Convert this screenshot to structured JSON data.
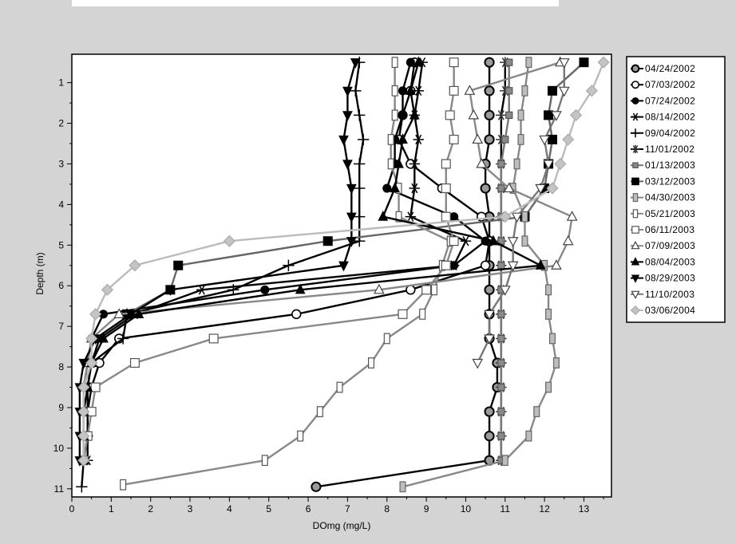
{
  "chart_data": {
    "type": "line",
    "orientation": "vertical-profile",
    "xlabel": "DOmg (mg/L)",
    "ylabel": "Depth (m)",
    "xlim": [
      0,
      13.7
    ],
    "ylim": [
      11.2,
      0.3
    ],
    "xticks": [
      0,
      1,
      2,
      3,
      4,
      5,
      6,
      7,
      8,
      9,
      10,
      11,
      12,
      13
    ],
    "yticks": [
      1,
      2,
      3,
      4,
      5,
      6,
      7,
      8,
      9,
      10,
      11
    ],
    "legend_position": "right",
    "series": [
      {
        "name": "04/24/2002",
        "color": "#000000",
        "marker": "circle-gray",
        "points": [
          [
            10.6,
            0.5
          ],
          [
            10.6,
            1.2
          ],
          [
            10.6,
            1.8
          ],
          [
            10.6,
            2.4
          ],
          [
            10.5,
            3.0
          ],
          [
            10.5,
            3.6
          ],
          [
            10.6,
            4.3
          ],
          [
            10.6,
            4.9
          ],
          [
            10.6,
            5.5
          ],
          [
            10.6,
            6.1
          ],
          [
            10.6,
            6.7
          ],
          [
            10.6,
            7.3
          ],
          [
            10.8,
            7.9
          ],
          [
            10.8,
            8.5
          ],
          [
            10.6,
            9.1
          ],
          [
            10.6,
            9.7
          ],
          [
            10.6,
            10.3
          ],
          [
            6.2,
            10.95
          ]
        ]
      },
      {
        "name": "07/03/2002",
        "color": "#000000",
        "marker": "circle-open",
        "points": [
          [
            8.7,
            0.5
          ],
          [
            8.6,
            1.2
          ],
          [
            8.4,
            1.8
          ],
          [
            8.3,
            2.4
          ],
          [
            8.6,
            3.0
          ],
          [
            9.4,
            3.6
          ],
          [
            10.4,
            4.3
          ],
          [
            10.6,
            4.9
          ],
          [
            10.5,
            5.5
          ],
          [
            8.6,
            6.1
          ],
          [
            5.7,
            6.7
          ],
          [
            1.2,
            7.3
          ],
          [
            0.7,
            7.9
          ],
          [
            0.5,
            8.5
          ],
          [
            0.4,
            9.1
          ],
          [
            0.4,
            9.7
          ],
          [
            0.3,
            10.3
          ]
        ]
      },
      {
        "name": "07/24/2002",
        "color": "#000000",
        "marker": "circle-filled",
        "points": [
          [
            8.6,
            0.5
          ],
          [
            8.4,
            1.2
          ],
          [
            8.4,
            1.8
          ],
          [
            8.2,
            2.4
          ],
          [
            8.2,
            3.0
          ],
          [
            8.0,
            3.6
          ],
          [
            9.7,
            4.3
          ],
          [
            10.5,
            4.9
          ],
          [
            9.7,
            5.5
          ],
          [
            4.9,
            6.1
          ],
          [
            0.8,
            6.7
          ],
          [
            0.5,
            7.3
          ],
          [
            0.4,
            7.9
          ],
          [
            0.3,
            8.5
          ],
          [
            0.3,
            9.1
          ],
          [
            0.3,
            9.7
          ],
          [
            0.3,
            10.3
          ]
        ]
      },
      {
        "name": "08/14/2002",
        "color": "#000000",
        "marker": "star",
        "points": [
          [
            8.9,
            0.5
          ],
          [
            8.8,
            1.2
          ],
          [
            8.7,
            1.8
          ],
          [
            8.8,
            2.4
          ],
          [
            8.7,
            3.0
          ],
          [
            8.7,
            3.6
          ],
          [
            8.6,
            4.3
          ],
          [
            10.0,
            4.9
          ],
          [
            9.7,
            5.5
          ],
          [
            3.3,
            6.1
          ],
          [
            1.6,
            6.7
          ],
          [
            0.7,
            7.3
          ],
          [
            0.5,
            7.9
          ],
          [
            0.4,
            8.5
          ],
          [
            0.4,
            9.1
          ],
          [
            0.4,
            9.7
          ],
          [
            0.4,
            10.3
          ]
        ]
      },
      {
        "name": "09/04/2002",
        "color": "#000000",
        "marker": "plus",
        "points": [
          [
            7.3,
            0.5
          ],
          [
            7.2,
            1.2
          ],
          [
            7.3,
            1.8
          ],
          [
            7.4,
            2.4
          ],
          [
            7.3,
            3.0
          ],
          [
            7.3,
            3.6
          ],
          [
            7.3,
            4.3
          ],
          [
            7.3,
            4.9
          ],
          [
            5.5,
            5.5
          ],
          [
            4.1,
            6.1
          ],
          [
            1.4,
            6.7
          ],
          [
            1.3,
            7.3
          ],
          [
            0.5,
            7.9
          ],
          [
            0.3,
            8.5
          ],
          [
            0.3,
            9.1
          ],
          [
            0.3,
            9.7
          ],
          [
            0.3,
            10.3
          ],
          [
            0.25,
            10.95
          ]
        ]
      },
      {
        "name": "11/01/2002",
        "color": "#000000",
        "marker": "asterisk",
        "points": [
          [
            11.0,
            0.5
          ],
          [
            11.0,
            1.2
          ],
          [
            10.9,
            1.8
          ],
          [
            10.9,
            2.4
          ],
          [
            10.9,
            3.0
          ],
          [
            10.9,
            3.6
          ],
          [
            10.9,
            4.3
          ],
          [
            10.9,
            4.9
          ],
          [
            10.9,
            5.5
          ],
          [
            10.9,
            6.1
          ],
          [
            10.9,
            6.7
          ],
          [
            10.9,
            7.3
          ],
          [
            10.9,
            7.9
          ],
          [
            10.9,
            8.5
          ],
          [
            10.9,
            9.1
          ],
          [
            10.9,
            9.7
          ],
          [
            10.9,
            10.3
          ]
        ]
      },
      {
        "name": "01/13/2003",
        "color": "#777777",
        "marker": "square-gray-small",
        "points": [
          [
            11.1,
            0.5
          ],
          [
            11.1,
            1.2
          ],
          [
            11.1,
            1.8
          ],
          [
            11.0,
            2.4
          ],
          [
            10.9,
            3.0
          ],
          [
            10.9,
            3.6
          ],
          [
            10.9,
            4.3
          ],
          [
            10.9,
            4.9
          ],
          [
            10.9,
            5.5
          ],
          [
            10.9,
            6.1
          ],
          [
            10.9,
            6.7
          ],
          [
            10.9,
            7.3
          ],
          [
            10.9,
            7.9
          ],
          [
            10.9,
            8.5
          ],
          [
            10.9,
            9.1
          ],
          [
            10.9,
            9.7
          ],
          [
            10.9,
            10.3
          ]
        ]
      },
      {
        "name": "03/12/2003",
        "color": "#666666",
        "marker": "square-black",
        "points": [
          [
            13.0,
            0.5
          ],
          [
            12.2,
            1.2
          ],
          [
            12.1,
            1.8
          ],
          [
            12.2,
            2.4
          ],
          [
            12.1,
            3.0
          ],
          [
            12.0,
            3.6
          ],
          [
            11.5,
            4.3
          ],
          [
            6.5,
            4.9
          ],
          [
            2.7,
            5.5
          ],
          [
            2.5,
            6.1
          ],
          [
            1.4,
            6.7
          ]
        ]
      },
      {
        "name": "04/30/2003",
        "color": "#888888",
        "marker": "rect-gray",
        "points": [
          [
            11.6,
            0.5
          ],
          [
            11.5,
            1.2
          ],
          [
            11.4,
            1.8
          ],
          [
            11.4,
            2.4
          ],
          [
            11.3,
            3.0
          ],
          [
            11.2,
            3.6
          ],
          [
            11.5,
            4.3
          ],
          [
            11.5,
            4.9
          ],
          [
            12.0,
            5.5
          ],
          [
            12.1,
            6.1
          ],
          [
            12.1,
            6.7
          ],
          [
            12.2,
            7.3
          ],
          [
            12.3,
            7.9
          ],
          [
            12.1,
            8.5
          ],
          [
            11.8,
            9.1
          ],
          [
            11.6,
            9.7
          ],
          [
            11.0,
            10.3
          ],
          [
            8.4,
            10.95
          ]
        ]
      },
      {
        "name": "05/21/2003",
        "color": "#888888",
        "marker": "rect-open",
        "points": [
          [
            8.2,
            0.5
          ],
          [
            8.2,
            1.2
          ],
          [
            8.2,
            1.8
          ],
          [
            8.1,
            2.4
          ],
          [
            8.1,
            3.0
          ],
          [
            8.3,
            3.6
          ],
          [
            8.3,
            4.3
          ],
          [
            9.6,
            4.9
          ],
          [
            9.4,
            5.5
          ],
          [
            9.2,
            6.1
          ],
          [
            8.9,
            6.7
          ],
          [
            8.0,
            7.3
          ],
          [
            7.6,
            7.9
          ],
          [
            6.8,
            8.5
          ],
          [
            6.3,
            9.1
          ],
          [
            5.8,
            9.7
          ],
          [
            4.9,
            10.3
          ],
          [
            1.3,
            10.9
          ]
        ]
      },
      {
        "name": "06/11/2003",
        "color": "#888888",
        "marker": "square-open",
        "points": [
          [
            9.7,
            0.5
          ],
          [
            9.7,
            1.2
          ],
          [
            9.6,
            1.8
          ],
          [
            9.7,
            2.4
          ],
          [
            9.5,
            3.0
          ],
          [
            9.5,
            3.6
          ],
          [
            9.5,
            4.3
          ],
          [
            9.7,
            4.9
          ],
          [
            9.5,
            5.5
          ],
          [
            9.0,
            6.1
          ],
          [
            8.4,
            6.7
          ],
          [
            3.6,
            7.3
          ],
          [
            1.6,
            7.9
          ],
          [
            0.6,
            8.5
          ],
          [
            0.5,
            9.1
          ],
          [
            0.4,
            9.7
          ],
          [
            0.3,
            10.3
          ]
        ]
      },
      {
        "name": "07/09/2003",
        "color": "#888888",
        "marker": "triangle-open",
        "points": [
          [
            12.4,
            0.5
          ],
          [
            10.1,
            1.2
          ],
          [
            10.2,
            1.8
          ],
          [
            10.3,
            2.4
          ],
          [
            10.4,
            3.0
          ],
          [
            11.1,
            3.6
          ],
          [
            12.7,
            4.3
          ],
          [
            12.6,
            4.9
          ],
          [
            12.3,
            5.5
          ],
          [
            7.8,
            6.1
          ],
          [
            1.2,
            6.7
          ],
          [
            0.5,
            7.3
          ],
          [
            0.4,
            7.9
          ],
          [
            0.3,
            8.5
          ],
          [
            0.3,
            9.1
          ],
          [
            0.3,
            9.7
          ],
          [
            0.3,
            10.3
          ]
        ]
      },
      {
        "name": "08/04/2003",
        "color": "#000000",
        "marker": "triangle-filled",
        "points": [
          [
            8.8,
            0.5
          ],
          [
            8.6,
            1.2
          ],
          [
            8.7,
            1.8
          ],
          [
            8.4,
            2.4
          ],
          [
            8.3,
            3.0
          ],
          [
            8.2,
            3.6
          ],
          [
            7.9,
            4.3
          ],
          [
            10.7,
            4.9
          ],
          [
            11.9,
            5.5
          ],
          [
            5.8,
            6.1
          ],
          [
            1.7,
            6.7
          ],
          [
            0.8,
            7.3
          ],
          [
            0.5,
            7.9
          ],
          [
            0.4,
            8.5
          ],
          [
            0.3,
            9.1
          ],
          [
            0.3,
            9.7
          ],
          [
            0.3,
            10.3
          ]
        ]
      },
      {
        "name": "08/29/2003",
        "color": "#000000",
        "marker": "triangle-down-filled",
        "points": [
          [
            7.2,
            0.5
          ],
          [
            7.0,
            1.2
          ],
          [
            7.0,
            1.8
          ],
          [
            6.9,
            2.4
          ],
          [
            7.0,
            3.0
          ],
          [
            7.1,
            3.6
          ],
          [
            7.1,
            4.3
          ],
          [
            7.1,
            4.9
          ],
          [
            6.9,
            5.5
          ],
          [
            2.5,
            6.1
          ],
          [
            1.5,
            6.7
          ],
          [
            0.6,
            7.3
          ],
          [
            0.3,
            7.9
          ],
          [
            0.2,
            8.5
          ],
          [
            0.2,
            9.1
          ],
          [
            0.2,
            9.7
          ],
          [
            0.2,
            10.3
          ]
        ]
      },
      {
        "name": "11/10/2003",
        "color": "#777777",
        "marker": "triangle-down-open",
        "points": [
          [
            12.5,
            0.5
          ],
          [
            12.5,
            1.2
          ],
          [
            12.3,
            1.8
          ],
          [
            12.0,
            2.4
          ],
          [
            12.1,
            3.0
          ],
          [
            11.9,
            3.6
          ],
          [
            11.3,
            4.3
          ],
          [
            11.2,
            4.9
          ],
          [
            11.2,
            5.5
          ],
          [
            11.0,
            6.1
          ],
          [
            10.6,
            6.7
          ],
          [
            10.6,
            7.3
          ],
          [
            10.3,
            7.9
          ]
        ]
      },
      {
        "name": "03/06/2004",
        "color": "#bbbbbb",
        "marker": "diamond-gray",
        "points": [
          [
            13.5,
            0.5
          ],
          [
            13.2,
            1.2
          ],
          [
            12.8,
            1.8
          ],
          [
            12.6,
            2.4
          ],
          [
            12.4,
            3.0
          ],
          [
            12.2,
            3.6
          ],
          [
            11.0,
            4.3
          ],
          [
            4.0,
            4.9
          ],
          [
            1.6,
            5.5
          ],
          [
            0.9,
            6.1
          ],
          [
            0.6,
            6.7
          ],
          [
            0.5,
            7.3
          ],
          [
            0.5,
            7.9
          ],
          [
            0.3,
            8.5
          ],
          [
            0.3,
            9.1
          ],
          [
            0.3,
            9.7
          ],
          [
            0.3,
            10.3
          ]
        ]
      }
    ]
  }
}
